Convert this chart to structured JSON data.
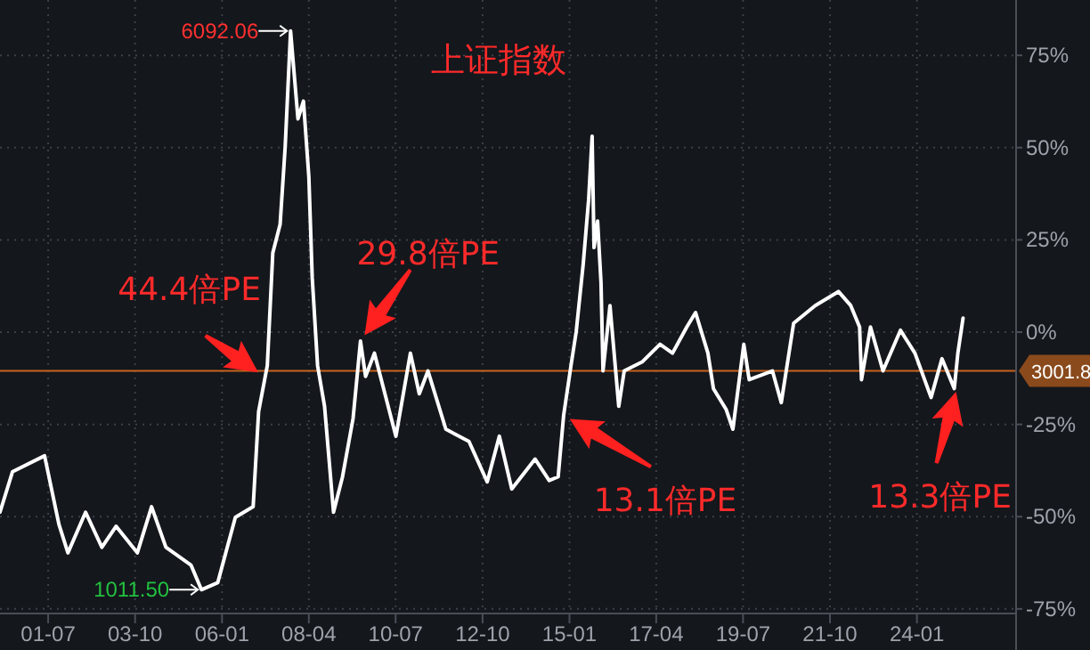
{
  "chart_data": {
    "type": "line",
    "title": "上证指数",
    "x": [
      "2000-04-01",
      "2000-07-29",
      "2001-05-28",
      "2001-10-11",
      "2002-01-04",
      "2002-06-20",
      "2002-11-21",
      "2003-04-04",
      "2003-10-22",
      "2004-03-05",
      "2004-07-19",
      "2005-03-13",
      "2005-06-20",
      "2005-11-21",
      "2006-05-07",
      "2006-10-22",
      "2006-12-13",
      "2007-03-05",
      "2007-04-26",
      "2007-07-04",
      "2007-08-21",
      "2007-10-11",
      "2007-12-20",
      "2008-02-10",
      "2008-04-01",
      "2008-05-03",
      "2008-06-23",
      "2008-08-28",
      "2008-11-21",
      "2009-02-14",
      "2009-05-25",
      "2009-08-03",
      "2009-09-20",
      "2009-12-13",
      "2010-07-04",
      "2010-11-18",
      "2011-02-10",
      "2011-05-03",
      "2011-10-19",
      "2012-05-25",
      "2012-11-14",
      "2013-03-09",
      "2013-07-04",
      "2014-02-10",
      "2014-06-23",
      "2014-09-16",
      "2014-11-07",
      "2015-01-15",
      "2015-03-05",
      "2015-05-10",
      "2015-07-01",
      "2015-08-03",
      "2015-08-21",
      "2015-09-24",
      "2015-10-26",
      "2015-11-14",
      "2016-01-19",
      "2016-04-11",
      "2016-06-02",
      "2016-11-18",
      "2017-05-07",
      "2017-09-02",
      "2018-01-15",
      "2018-04-08",
      "2018-08-03",
      "2018-09-24",
      "2019-01-23",
      "2019-03-27",
      "2019-07-08",
      "2019-08-28",
      "2020-04-04",
      "2020-06-27",
      "2020-10-22",
      "2021-05-14",
      "2021-12-20",
      "2022-04-15",
      "2022-07-08",
      "2022-07-26",
      "2022-10-19",
      "2023-02-14",
      "2023-07-29",
      "2023-12-13",
      "2024-05-14",
      "2024-08-25",
      "2024-12-20",
      "2025-01-23",
      "2025-03-13"
    ],
    "series": [
      {
        "color": "#ffffff",
        "values": [
          -48.8,
          -37.8,
          -33.5,
          -52.1,
          -59.8,
          -48.8,
          -58.3,
          -52.6,
          -59.8,
          -47.3,
          -58.3,
          -63.1,
          -69.8,
          -67.9,
          -50.2,
          -47.3,
          -21.5,
          -9.1,
          21.5,
          29.2,
          50.2,
          81.6,
          57.8,
          62.6,
          42.1,
          14.8,
          -9.1,
          -20.1,
          -48.8,
          -39.2,
          -23.4,
          -2.4,
          -12.0,
          -5.7,
          -28.2,
          -5.7,
          -16.7,
          -10.5,
          -26.3,
          -29.6,
          -40.6,
          -28.2,
          -42.5,
          -34.4,
          -40.2,
          -39.2,
          -22.5,
          -9.1,
          0,
          18.2,
          35.9,
          53.1,
          22.9,
          30.1,
          13.4,
          -10.5,
          7.2,
          -20.1,
          -10.5,
          -8.1,
          -3.3,
          -5.7,
          1.4,
          5.3,
          -5.7,
          -15.3,
          -21.0,
          -26.3,
          -3.3,
          -12.9,
          -10.5,
          -19.1,
          2.4,
          7.2,
          11.0,
          7.2,
          1.4,
          -12.9,
          1.4,
          -10.5,
          0.5,
          -5.7,
          -17.7,
          -7.2,
          -15.3,
          -5.7,
          3.8
        ]
      }
    ],
    "xlim": [
      "2000-04-01",
      "2026-07-19"
    ],
    "xticks": [
      {
        "value": "2001-07-01",
        "label": "01-07"
      },
      {
        "value": "2003-10-01",
        "label": "03-10"
      },
      {
        "value": "2006-01-01",
        "label": "06-01"
      },
      {
        "value": "2008-04-01",
        "label": "08-04"
      },
      {
        "value": "2010-07-01",
        "label": "10-07"
      },
      {
        "value": "2012-10-01",
        "label": "12-10"
      },
      {
        "value": "2015-01-01",
        "label": "15-01"
      },
      {
        "value": "2017-04-01",
        "label": "17-04"
      },
      {
        "value": "2019-07-01",
        "label": "19-07"
      },
      {
        "value": "2021-10-01",
        "label": "21-10"
      },
      {
        "value": "2024-01-01",
        "label": "24-01"
      }
    ],
    "ylim": [
      -76,
      90
    ],
    "yticks": [
      {
        "value": 75,
        "label": "75%"
      },
      {
        "value": 50,
        "label": "50%"
      },
      {
        "value": 25,
        "label": "25%"
      },
      {
        "value": 0,
        "label": "0%"
      },
      {
        "value": -25,
        "label": "-25%"
      },
      {
        "value": -50,
        "label": "-50%"
      },
      {
        "value": -75,
        "label": "-75%"
      }
    ],
    "grid": true,
    "ref_lines": [
      {
        "axis": "y",
        "value": -10.5,
        "color": "#c8641e"
      }
    ],
    "annotations": [
      {
        "text": "6092.06",
        "x": "2007-10-11",
        "y": 81.6
      },
      {
        "text": "1011.50",
        "x": "2005-06-20",
        "y": -69.8
      },
      {
        "text": "44.4倍PE",
        "x": "2007-02-03",
        "y": -12.0
      },
      {
        "text": "29.8倍PE",
        "x": "2009-08-03",
        "y": -2.4
      },
      {
        "text": "13.1倍PE",
        "x": "2014-11-07",
        "y": -22.5
      },
      {
        "text": "13.3倍PE",
        "x": "2025-01-23",
        "y": -14.3
      },
      "3001.8"
    ]
  }
}
